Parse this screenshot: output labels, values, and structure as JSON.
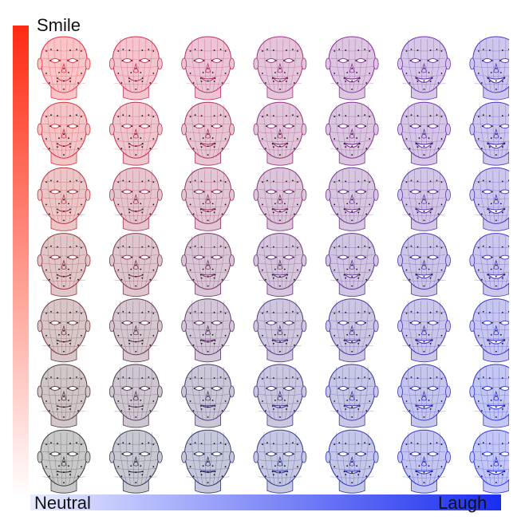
{
  "labels": {
    "smile": "Smile",
    "neutral": "Neutral",
    "laugh": "Laugh"
  },
  "colors": {
    "smile_axis": "#ff2a12",
    "neutral_axis_start": "#e9ecff",
    "laugh_axis": "#1a2cf0",
    "neutral_face": "#3a3a3a",
    "smile_face": "#e8303c",
    "laugh_face": "#2a34e6",
    "landmark": "#111111"
  },
  "grid": {
    "rows": 7,
    "cols": 7,
    "rows_axis": "smile",
    "cols_axis": "laugh",
    "face_icon": "wireframe-head-icon"
  }
}
